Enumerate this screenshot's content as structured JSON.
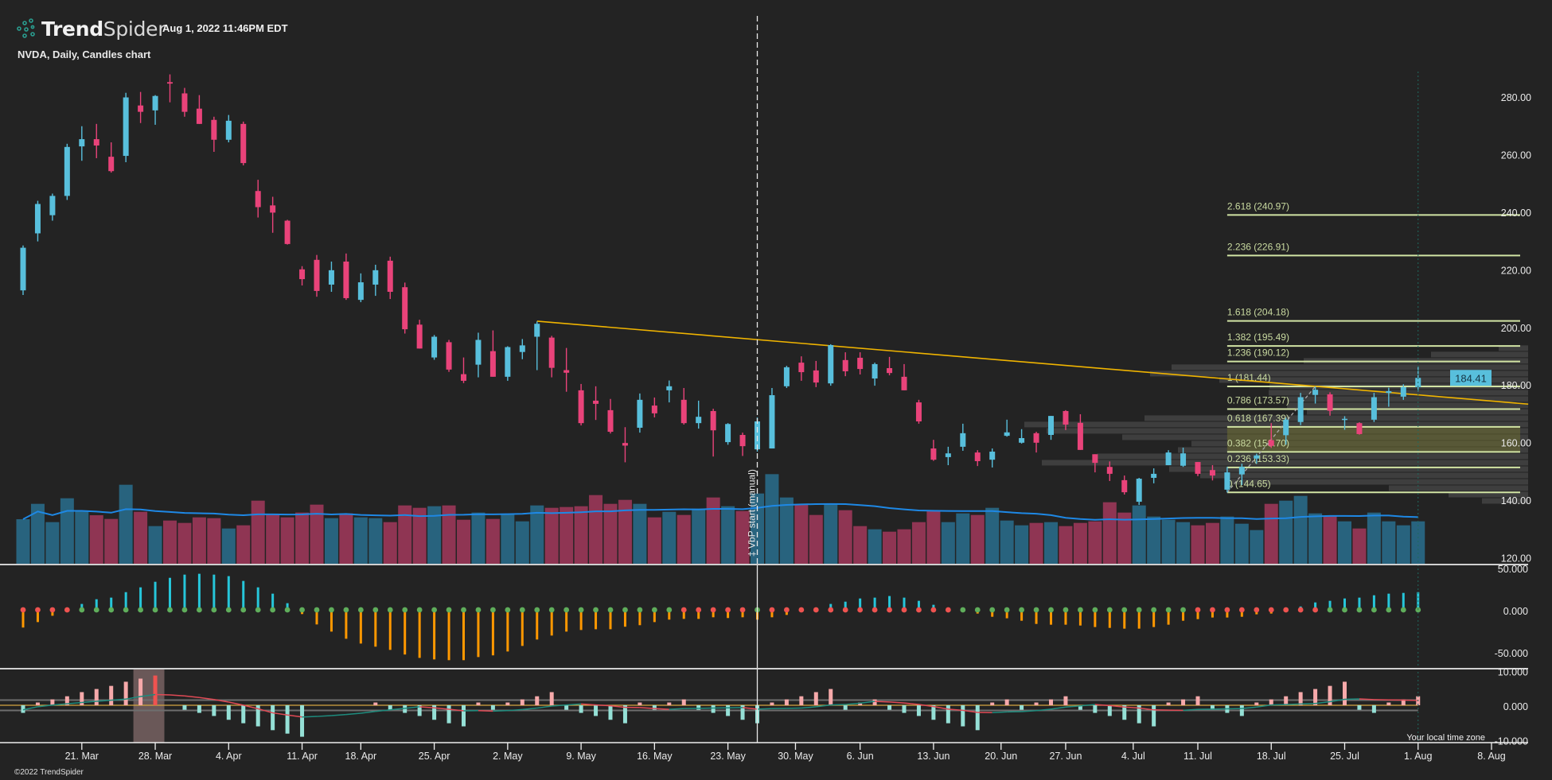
{
  "header": {
    "brand_bold": "Trend",
    "brand_light": "Spider",
    "timestamp": "Aug 1, 2022 11:46PM EDT",
    "symbol_line": "NVDA, Daily, Candles chart"
  },
  "footer": {
    "copyright": "©2022 TrendSpider",
    "timezone_note": "Your local time zone"
  },
  "colors": {
    "background": "#232323",
    "candle_up": "#58bfdc",
    "candle_down": "#e9437a",
    "volume_up": "#28637e",
    "volume_down": "#8f3553",
    "volume_ma": "#1e88e5",
    "fib": "#d2e4a4",
    "trendline": "#f0b400",
    "osc_pos": "#26c6da",
    "osc_neg": "#ff9800",
    "dot_on": "#ef5350",
    "dot_off": "#5fae5b",
    "hist_pos": "#f6a9aa",
    "hist_neg": "#95e0d6",
    "price_badge": "#58bfdc"
  },
  "chart_data": {
    "type": "candlestick",
    "symbol": "NVDA",
    "interval": "Daily",
    "last_price": 184.41,
    "last_price_label": "184.41",
    "price_axis": [
      {
        "value": 280,
        "label": "280.00"
      },
      {
        "value": 260,
        "label": "260.00"
      },
      {
        "value": 240,
        "label": "240.00"
      },
      {
        "value": 220,
        "label": "220.00"
      },
      {
        "value": 200,
        "label": "200.00"
      },
      {
        "value": 180,
        "label": "180.00"
      },
      {
        "value": 160,
        "label": "160.00"
      },
      {
        "value": 140,
        "label": "140.00"
      },
      {
        "value": 120,
        "label": "120.00"
      }
    ],
    "date_ticks": [
      {
        "bar": 4,
        "label": "21. Mar"
      },
      {
        "bar": 9,
        "label": "28. Mar"
      },
      {
        "bar": 14,
        "label": "4. Apr"
      },
      {
        "bar": 19,
        "label": "11. Apr"
      },
      {
        "bar": 23,
        "label": "18. Apr"
      },
      {
        "bar": 28,
        "label": "25. Apr"
      },
      {
        "bar": 33,
        "label": "2. May"
      },
      {
        "bar": 38,
        "label": "9. May"
      },
      {
        "bar": 43,
        "label": "16. May"
      },
      {
        "bar": 48,
        "label": "23. May"
      },
      {
        "bar": 52.6,
        "label": "30. May"
      },
      {
        "bar": 57,
        "label": "6. Jun"
      },
      {
        "bar": 62,
        "label": "13. Jun"
      },
      {
        "bar": 66.6,
        "label": "20. Jun"
      },
      {
        "bar": 71,
        "label": "27. Jun"
      },
      {
        "bar": 75.6,
        "label": "4. Jul"
      },
      {
        "bar": 80,
        "label": "11. Jul"
      },
      {
        "bar": 85,
        "label": "18. Jul"
      },
      {
        "bar": 90,
        "label": "25. Jul"
      },
      {
        "bar": 95,
        "label": "1. Aug"
      },
      {
        "bar": 100,
        "label": "8. Aug"
      }
    ],
    "ohlc": [
      [
        214.8,
        230.4,
        213.2,
        229.6
      ],
      [
        234.6,
        245.9,
        231.8,
        244.8
      ],
      [
        240.9,
        248.4,
        239.0,
        247.6
      ],
      [
        247.6,
        265.7,
        246.2,
        264.6
      ],
      [
        264.8,
        271.8,
        259.8,
        267.3
      ],
      [
        267.3,
        272.6,
        260.7,
        265.1
      ],
      [
        261.2,
        266.2,
        255.7,
        256.2
      ],
      [
        261.5,
        283.4,
        259.3,
        281.8
      ],
      [
        279.0,
        283.7,
        272.9,
        276.8
      ],
      [
        277.3,
        282.6,
        272.3,
        282.3
      ],
      [
        287.1,
        289.8,
        280.1,
        286.6
      ],
      [
        283.2,
        285.1,
        275.1,
        276.8
      ],
      [
        277.9,
        282.6,
        272.6,
        272.6
      ],
      [
        274.0,
        275.1,
        262.9,
        267.1
      ],
      [
        267.1,
        275.7,
        266.2,
        273.7
      ],
      [
        272.6,
        273.4,
        258.2,
        259.0
      ],
      [
        249.3,
        253.2,
        240.1,
        243.7
      ],
      [
        244.3,
        247.3,
        234.8,
        241.8
      ],
      [
        239.0,
        239.3,
        230.7,
        230.9
      ],
      [
        222.1,
        223.2,
        216.5,
        218.7
      ],
      [
        225.4,
        227.1,
        212.6,
        214.6
      ],
      [
        216.8,
        224.8,
        214.3,
        221.8
      ],
      [
        224.8,
        227.6,
        211.5,
        212.1
      ],
      [
        211.5,
        220.7,
        210.7,
        217.6
      ],
      [
        216.8,
        223.7,
        212.9,
        221.8
      ],
      [
        225.1,
        226.5,
        211.8,
        214.3
      ],
      [
        215.9,
        217.5,
        199.8,
        201.3
      ],
      [
        202.9,
        204.6,
        194.6,
        194.6
      ],
      [
        191.5,
        199.3,
        190.7,
        198.7
      ],
      [
        196.8,
        197.6,
        186.5,
        187.3
      ],
      [
        185.7,
        191.5,
        182.6,
        183.4
      ],
      [
        189.0,
        200.1,
        184.6,
        197.6
      ],
      [
        193.7,
        200.9,
        184.8,
        184.8
      ],
      [
        184.8,
        195.4,
        183.4,
        195.1
      ],
      [
        193.4,
        197.9,
        190.9,
        195.7
      ],
      [
        198.7,
        204.0,
        187.1,
        203.2
      ],
      [
        198.4,
        199.0,
        184.6,
        187.9
      ],
      [
        187.1,
        194.8,
        179.6,
        186.2
      ],
      [
        180.1,
        182.3,
        167.9,
        168.7
      ],
      [
        176.5,
        181.5,
        169.8,
        175.4
      ],
      [
        173.2,
        177.1,
        165.1,
        165.7
      ],
      [
        161.8,
        167.3,
        155.1,
        160.9
      ],
      [
        167.1,
        179.0,
        165.4,
        176.8
      ],
      [
        174.8,
        177.6,
        170.7,
        172.1
      ],
      [
        180.1,
        183.5,
        175.9,
        181.5
      ],
      [
        176.8,
        180.9,
        168.2,
        168.7
      ],
      [
        168.7,
        176.5,
        166.8,
        170.9
      ],
      [
        172.9,
        173.7,
        157.1,
        166.2
      ],
      [
        162.1,
        168.7,
        161.2,
        168.4
      ],
      [
        164.6,
        165.4,
        157.3,
        160.7
      ],
      [
        159.6,
        170.7,
        158.8,
        169.3
      ],
      [
        159.9,
        180.9,
        159.9,
        178.4
      ],
      [
        181.5,
        188.6,
        180.9,
        188.1
      ],
      [
        189.7,
        191.9,
        183.4,
        186.4
      ],
      [
        187.0,
        190.3,
        181.2,
        182.8
      ],
      [
        182.5,
        196.1,
        181.7,
        195.8
      ],
      [
        190.6,
        193.3,
        185.0,
        186.7
      ],
      [
        191.4,
        193.3,
        185.6,
        187.5
      ],
      [
        184.2,
        189.7,
        181.7,
        189.2
      ],
      [
        187.8,
        191.7,
        185.3,
        186.1
      ],
      [
        184.8,
        189.2,
        180.1,
        180.1
      ],
      [
        175.9,
        176.8,
        168.5,
        169.3
      ],
      [
        159.9,
        162.9,
        155.6,
        156.0
      ],
      [
        156.9,
        160.5,
        154.1,
        158.2
      ],
      [
        160.5,
        168.5,
        159.1,
        165.2
      ],
      [
        158.5,
        159.3,
        153.8,
        155.5
      ],
      [
        156.0,
        159.9,
        153.3,
        158.8
      ],
      [
        164.3,
        169.9,
        164.0,
        165.5
      ],
      [
        161.9,
        166.6,
        161.6,
        163.5
      ],
      [
        165.2,
        165.7,
        158.5,
        161.9
      ],
      [
        164.6,
        171.2,
        162.9,
        171.2
      ],
      [
        172.9,
        173.2,
        166.3,
        168.2
      ],
      [
        168.8,
        171.8,
        159.4,
        159.4
      ],
      [
        157.9,
        157.9,
        151.6,
        154.9
      ],
      [
        153.5,
        155.4,
        148.6,
        151.1
      ],
      [
        148.9,
        150.5,
        143.9,
        144.7
      ],
      [
        141.4,
        149.7,
        140.3,
        149.4
      ],
      [
        149.7,
        153.0,
        147.8,
        151.1
      ],
      [
        154.1,
        159.3,
        154.1,
        158.5
      ],
      [
        153.9,
        160.2,
        153.5,
        158.2
      ],
      [
        155.2,
        155.2,
        150.3,
        151.1
      ],
      [
        152.4,
        154.1,
        148.8,
        150.5
      ],
      [
        145.6,
        153.5,
        144.65,
        151.6
      ],
      [
        150.9,
        154.6,
        147.2,
        153.5
      ],
      [
        156.4,
        158.1,
        154.6,
        157.5
      ],
      [
        162.8,
        168.7,
        160.1,
        160.8
      ],
      [
        164.5,
        170.6,
        161.2,
        169.9
      ],
      [
        169.1,
        179.2,
        168.0,
        177.7
      ],
      [
        178.5,
        181.44,
        175.5,
        180.3
      ],
      [
        178.7,
        179.4,
        171.3,
        173.0
      ],
      [
        169.9,
        171.1,
        166.4,
        170.2
      ],
      [
        168.7,
        169.0,
        164.7,
        164.9
      ],
      [
        169.9,
        179.2,
        169.1,
        177.7
      ],
      [
        179.2,
        181.0,
        174.4,
        179.8
      ],
      [
        177.9,
        182.2,
        176.8,
        181.2
      ],
      [
        181.2,
        188.4,
        179.7,
        184.41
      ]
    ],
    "volume_millions": [
      50.4,
      67.8,
      47.1,
      74.1,
      59.7,
      54.9,
      50.7,
      89.4,
      58.8,
      42.6,
      48.9,
      46.2,
      52.5,
      51.6,
      39.9,
      43.5,
      71.4,
      56.1,
      52.5,
      57.9,
      66.9,
      51.6,
      57.0,
      52.5,
      51.6,
      47.1,
      66.0,
      63.3,
      65.1,
      66.0,
      49.8,
      57.9,
      50.7,
      56.1,
      48.0,
      66.0,
      63.3,
      64.2,
      65.1,
      77.7,
      67.8,
      72.3,
      67.8,
      52.5,
      58.8,
      55.2,
      62.4,
      75.0,
      65.1,
      59.7,
      79.5,
      101.4,
      75.0,
      66.9,
      55.2,
      67.8,
      60.6,
      42.6,
      39.0,
      36.3,
      39.0,
      47.1,
      60.6,
      47.1,
      57.0,
      55.2,
      63.3,
      48.9,
      43.5,
      46.2,
      47.1,
      42.6,
      46.2,
      48.0,
      69.6,
      57.9,
      66.0,
      53.4,
      49.8,
      47.1,
      43.5,
      46.2,
      53.4,
      45.3,
      38.1,
      67.8,
      71.4,
      76.8,
      57.0,
      54.3,
      48.0,
      39.9,
      57.9,
      48.0,
      43.5,
      48.0
    ],
    "volume_ma_period": 20,
    "volume_profile": {
      "label": "‡ VbP start (manual)",
      "start_bar": 50,
      "bin_top_price": 195.7,
      "bin_size": 2.21,
      "volumes": [
        37,
        122,
        282,
        448,
        475,
        388,
        325,
        326,
        303,
        303,
        278,
        482,
        633,
        605,
        510,
        423,
        440,
        542,
        611,
        451,
        412,
        379,
        175,
        100,
        58
      ]
    },
    "fibonacci": {
      "from_bar": 82,
      "from_price": 144.65,
      "to_bar": 88,
      "to_price": 181.44,
      "shaded_between": [
        158.7,
        167.39
      ],
      "levels": [
        {
          "price": 144.65,
          "label": "0 (144.65)"
        },
        {
          "price": 153.33,
          "label": "0.236 (153.33)"
        },
        {
          "price": 158.7,
          "label": "0.382 (158.70)"
        },
        {
          "price": 167.39,
          "label": "0.618 (167.39)"
        },
        {
          "price": 173.57,
          "label": "0.786 (173.57)"
        },
        {
          "price": 181.44,
          "label": "1 (181.44)"
        },
        {
          "price": 190.12,
          "label": "1.236 (190.12)"
        },
        {
          "price": 195.49,
          "label": "1.382 (195.49)"
        },
        {
          "price": 204.18,
          "label": "1.618 (204.18)"
        },
        {
          "price": 226.91,
          "label": "2.236 (226.91)"
        },
        {
          "price": 240.97,
          "label": "2.618 (240.97)"
        }
      ]
    },
    "trendline": {
      "from": {
        "bar": 35,
        "price": 204.1
      },
      "to": {
        "bar": 102.5,
        "price": 175.3
      }
    },
    "squeeze_oscillator": {
      "axis": [
        {
          "value": 50,
          "label": "50.000"
        },
        {
          "value": 0,
          "label": "0.000"
        },
        {
          "value": -50,
          "label": "-50.000"
        }
      ],
      "values": [
        -21,
        -14.5,
        -7,
        0,
        7,
        12.6,
        14.5,
        21,
        26.7,
        33.3,
        38,
        41.8,
        42.8,
        41.8,
        40,
        34.3,
        26.7,
        19.2,
        7.9,
        -5,
        -17.3,
        -25.8,
        -34.3,
        -40,
        -43.7,
        -47.5,
        -53,
        -57,
        -58.8,
        -59.7,
        -59.7,
        -56,
        -54,
        -49.4,
        -42.8,
        -35.2,
        -30.5,
        -25.8,
        -23.9,
        -23,
        -23,
        -20,
        -18.2,
        -14.5,
        -11.6,
        -10.7,
        -10.7,
        -8.8,
        -9.7,
        -8.8,
        -11.6,
        -8.8,
        -6,
        -2.5,
        -1,
        7,
        9.7,
        13.5,
        14.5,
        16.4,
        14.5,
        10.7,
        6,
        0,
        0,
        -4.4,
        -8.2,
        -10,
        -12.9,
        -16.7,
        -17.6,
        -17.6,
        -18.6,
        -20.4,
        -21.4,
        -22.3,
        -22.3,
        -20.4,
        -17.6,
        -12.9,
        -11,
        -9.1,
        -9.1,
        -8.2,
        -5.3,
        -4.4,
        0,
        4,
        8.8,
        10.7,
        13.5,
        14.5,
        17.3,
        19.2,
        20.1,
        21
      ],
      "squeeze_on": "1111000000000000000000000000000000000000000001111101111111111111000000000000000011111111100000000"
    },
    "count_histogram": {
      "axis": [
        {
          "value": 10,
          "label": "10.000"
        },
        {
          "value": 0,
          "label": "0.000"
        },
        {
          "value": -10,
          "label": "-10.000"
        }
      ],
      "band": [
        -1.5,
        1.5
      ],
      "highlight_bars": [
        8,
        10
      ],
      "values": [
        -2.2,
        0.8,
        1.7,
        2.6,
        3.8,
        4.7,
        5.6,
        6.8,
        7.7,
        8.6,
        0,
        -1.3,
        -2.2,
        -3.1,
        -4.2,
        -5.2,
        -6.1,
        -7.2,
        -8.2,
        -9.1,
        0,
        0,
        0,
        0,
        0.8,
        -1.3,
        -2.2,
        -3.1,
        -4.2,
        -5.2,
        -6.1,
        0.8,
        -1.3,
        0.8,
        1.7,
        2.6,
        3.8,
        -1.3,
        -2.2,
        -3.1,
        -4.2,
        -5.2,
        0.8,
        -1.3,
        0.8,
        1.7,
        -1.3,
        -2.2,
        -3.1,
        -4.2,
        -5.2,
        0.8,
        1.7,
        2.6,
        3.8,
        4.7,
        -1.3,
        0.8,
        1.7,
        -1.3,
        -2.2,
        -3.1,
        -4.2,
        -5.2,
        -6.1,
        -7.2,
        0.8,
        1.7,
        -1.3,
        0.8,
        1.7,
        2.6,
        -1.3,
        -2.2,
        -3.1,
        -4.2,
        -5.2,
        -6.1,
        0.8,
        1.7,
        2.6,
        -1.3,
        -2.2,
        -3.1,
        0.8,
        1.7,
        2.6,
        3.8,
        4.7,
        5.6,
        6.8,
        -1.3,
        -2.2,
        0.8,
        1.7,
        2.6
      ]
    }
  }
}
